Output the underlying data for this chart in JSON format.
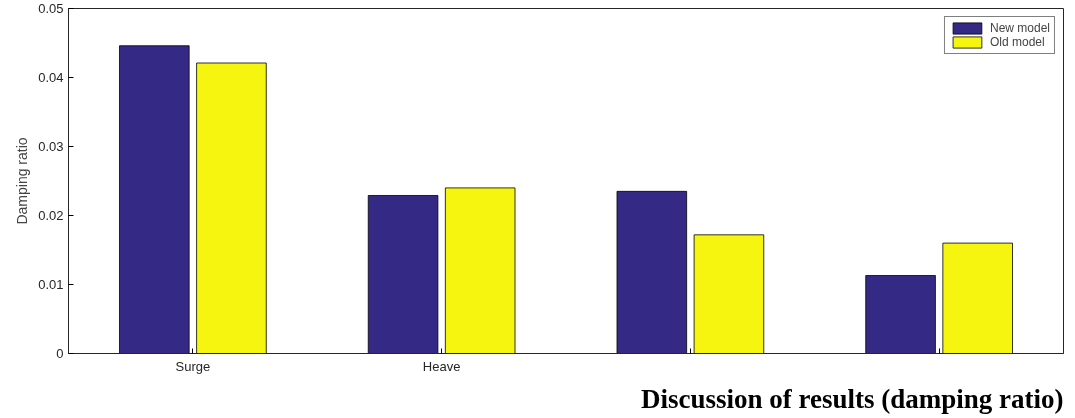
{
  "chart_data": {
    "type": "bar",
    "categories": [
      "Surge",
      "Heave",
      null,
      null
    ],
    "series": [
      {
        "name": "New model",
        "color": "#342a85",
        "values": [
          0.0446,
          0.0229,
          0.0235,
          0.0113
        ]
      },
      {
        "name": "Old model",
        "color": "#f5f510",
        "values": [
          0.0421,
          0.024,
          0.0172,
          0.016
        ]
      }
    ],
    "ylabel": "Damping ratio",
    "ylim": [
      0,
      0.05
    ],
    "yticks": [
      0,
      0.01,
      0.02,
      0.03,
      0.04,
      0.05
    ],
    "annotations": [
      "Discussion of results (damping ratio)"
    ],
    "grid": false,
    "legend": "top right"
  }
}
